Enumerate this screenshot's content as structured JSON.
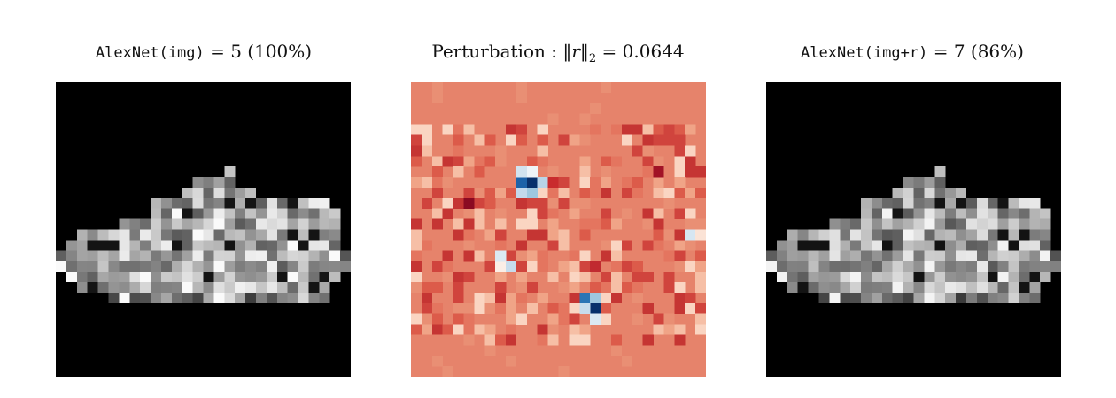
{
  "panels": [
    {
      "id": "original",
      "title_model": "AlexNet(img)",
      "title_eq": "=",
      "title_class": "5",
      "title_conf": "(100%)"
    },
    {
      "id": "perturbation",
      "title_label": "Perturbation",
      "title_colon": ":",
      "title_norm_open": "‖",
      "title_norm_var": "r",
      "title_norm_close": "‖",
      "title_norm_sub": "2",
      "title_eq": "=",
      "title_value": "0.0644"
    },
    {
      "id": "adversarial",
      "title_model": "AlexNet(img+r)",
      "title_eq": "=",
      "title_class": "7",
      "title_conf": "(86%)"
    }
  ],
  "colors": {
    "background": "#000000",
    "perturbation_base": "#e6836b"
  }
}
